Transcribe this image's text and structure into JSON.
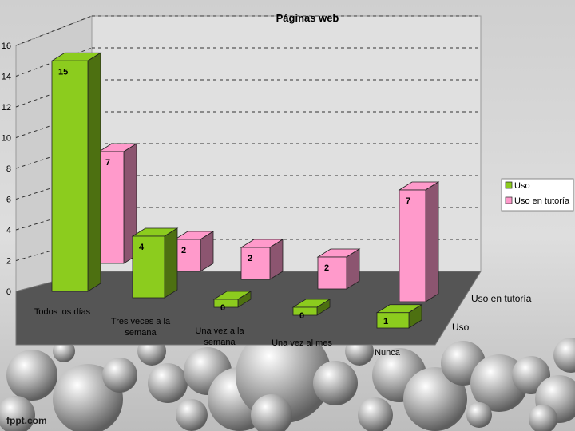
{
  "chart_data": {
    "type": "bar",
    "title": "Páginas web",
    "categories": [
      "Todos los días",
      "Tres veces a la semana",
      "Una vez a la semana",
      "Una vez al mes",
      "Nunca"
    ],
    "series": [
      {
        "name": "Uso",
        "values": [
          15,
          4,
          0,
          0,
          1
        ],
        "color": "#8ccc1e"
      },
      {
        "name": "Uso en tutoría",
        "values": [
          7,
          2,
          2,
          2,
          7
        ],
        "color": "#ff9acb"
      }
    ],
    "y_ticks": [
      0,
      2,
      4,
      6,
      8,
      10,
      12,
      14,
      16
    ],
    "ylim": [
      0,
      16
    ],
    "legend_position": "right",
    "grid": true,
    "depth_labels": [
      "Uso en tutoría",
      "Uso"
    ]
  },
  "watermark": "fppt.com"
}
